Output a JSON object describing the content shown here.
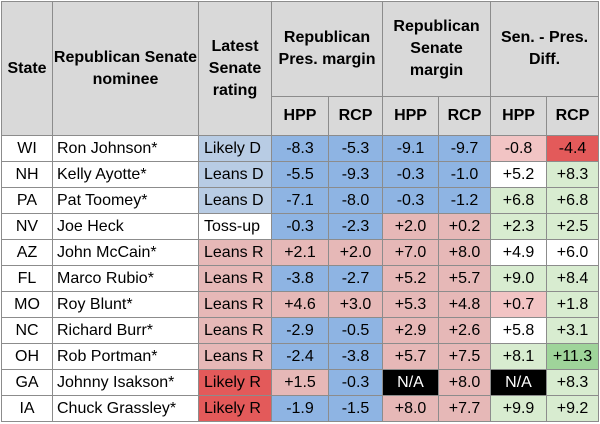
{
  "colors": {
    "header_bg": "#d9d9d9",
    "blue": "#8eb4e3",
    "light_blue": "#b8cce4",
    "light_red": "#e6b8b7",
    "red": "#e35a5a",
    "pink": "#f2c4c4",
    "light_green": "#d8ecd0",
    "green": "#9fd49a",
    "black": "#000000"
  },
  "headers": {
    "state": "State",
    "nominee": "Republican Senate nominee",
    "rating": "Latest Senate rating",
    "pres_margin": "Republican Pres. margin",
    "senate_margin": "Republican Senate margin",
    "diff": "Sen. - Pres. Diff.",
    "hpp": "HPP",
    "rcp": "RCP"
  },
  "rows": [
    {
      "state": "WI",
      "name": "Ron Johnson*",
      "rating": "Likely D",
      "pres_hpp": "-8.3",
      "pres_rcp": "-5.3",
      "sen_hpp": "-9.1",
      "sen_rcp": "-9.7",
      "diff_hpp": "-0.8",
      "diff_rcp": "-4.4"
    },
    {
      "state": "NH",
      "name": "Kelly Ayotte*",
      "rating": "Leans D",
      "pres_hpp": "-5.5",
      "pres_rcp": "-9.3",
      "sen_hpp": "-0.3",
      "sen_rcp": "-1.0",
      "diff_hpp": "+5.2",
      "diff_rcp": "+8.3"
    },
    {
      "state": "PA",
      "name": "Pat Toomey*",
      "rating": "Leans D",
      "pres_hpp": "-7.1",
      "pres_rcp": "-8.0",
      "sen_hpp": "-0.3",
      "sen_rcp": "-1.2",
      "diff_hpp": "+6.8",
      "diff_rcp": "+6.8"
    },
    {
      "state": "NV",
      "name": "Joe Heck",
      "rating": "Toss-up",
      "pres_hpp": "-0.3",
      "pres_rcp": "-2.3",
      "sen_hpp": "+2.0",
      "sen_rcp": "+0.2",
      "diff_hpp": "+2.3",
      "diff_rcp": "+2.5"
    },
    {
      "state": "AZ",
      "name": "John McCain*",
      "rating": "Leans R",
      "pres_hpp": "+2.1",
      "pres_rcp": "+2.0",
      "sen_hpp": "+7.0",
      "sen_rcp": "+8.0",
      "diff_hpp": "+4.9",
      "diff_rcp": "+6.0"
    },
    {
      "state": "FL",
      "name": "Marco Rubio*",
      "rating": "Leans R",
      "pres_hpp": "-3.8",
      "pres_rcp": "-2.7",
      "sen_hpp": "+5.2",
      "sen_rcp": "+5.7",
      "diff_hpp": "+9.0",
      "diff_rcp": "+8.4"
    },
    {
      "state": "MO",
      "name": "Roy Blunt*",
      "rating": "Leans R",
      "pres_hpp": "+4.6",
      "pres_rcp": "+3.0",
      "sen_hpp": "+5.3",
      "sen_rcp": "+4.8",
      "diff_hpp": "+0.7",
      "diff_rcp": "+1.8"
    },
    {
      "state": "NC",
      "name": "Richard Burr*",
      "rating": "Leans R",
      "pres_hpp": "-2.9",
      "pres_rcp": "-0.5",
      "sen_hpp": "+2.9",
      "sen_rcp": "+2.6",
      "diff_hpp": "+5.8",
      "diff_rcp": "+3.1"
    },
    {
      "state": "OH",
      "name": "Rob Portman*",
      "rating": "Leans R",
      "pres_hpp": "-2.4",
      "pres_rcp": "-3.8",
      "sen_hpp": "+5.7",
      "sen_rcp": "+7.5",
      "diff_hpp": "+8.1",
      "diff_rcp": "+11.3"
    },
    {
      "state": "GA",
      "name": "Johnny Isakson*",
      "rating": "Likely R",
      "pres_hpp": "+1.5",
      "pres_rcp": "-0.3",
      "sen_hpp": "N/A",
      "sen_rcp": "+8.0",
      "diff_hpp": "N/A",
      "diff_rcp": "+8.3"
    },
    {
      "state": "IA",
      "name": "Chuck Grassley*",
      "rating": "Likely R",
      "pres_hpp": "-1.9",
      "pres_rcp": "-1.5",
      "sen_hpp": "+8.0",
      "sen_rcp": "+7.7",
      "diff_hpp": "+9.9",
      "diff_rcp": "+9.2"
    }
  ]
}
